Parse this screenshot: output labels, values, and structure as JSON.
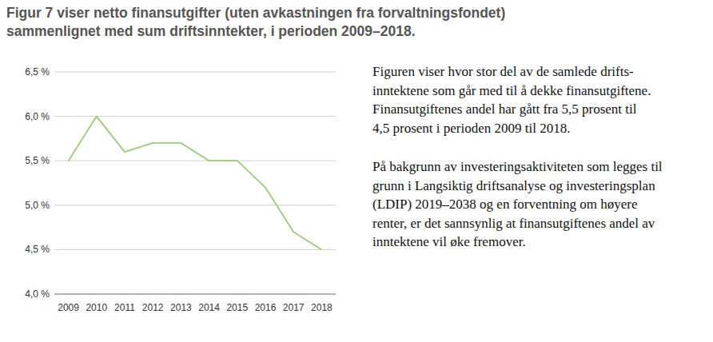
{
  "chart_data": {
    "type": "line",
    "title": [
      "Figur 7 viser netto finansutgifter (uten avkastningen fra forvaltningsfondet)",
      "sammenlignet med sum driftsinntekter, i perioden 2009–2018."
    ],
    "categories": [
      "2009",
      "2010",
      "2011",
      "2012",
      "2013",
      "2014",
      "2015",
      "2016",
      "2017",
      "2018"
    ],
    "values": [
      5.5,
      6.0,
      5.6,
      5.7,
      5.7,
      5.5,
      5.5,
      5.2,
      4.7,
      4.5
    ],
    "color": "#9ccb74",
    "ylim": [
      4.0,
      6.5
    ],
    "yticks": [
      {
        "value": 4.0,
        "label": "4,0 %"
      },
      {
        "value": 4.5,
        "label": "4,5 %"
      },
      {
        "value": 5.0,
        "label": "5,0 %"
      },
      {
        "value": 5.5,
        "label": "5,5 %"
      },
      {
        "value": 6.0,
        "label": "6,0 %"
      },
      {
        "value": 6.5,
        "label": "6,5 %"
      }
    ],
    "grid": true,
    "annotations": [
      [
        "Figuren viser hvor stor del av de samlede drifts-",
        "inntektene som går med til å dekke finansutgiftene.",
        "Finansutgiftenes andel har gått fra 5,5 prosent til",
        "4,5 prosent i perioden 2009 til 2018."
      ],
      [
        "På bakgrunn av investeringsaktiviteten som legges til",
        "grunn i Langsiktig driftsanalyse og investeringsplan",
        "(LDIP) 2019–2038 og en forventning om høyere",
        "renter, er det sannsynlig at finansutgiftenes andel av",
        "inntektene vil øke fremover."
      ]
    ]
  }
}
